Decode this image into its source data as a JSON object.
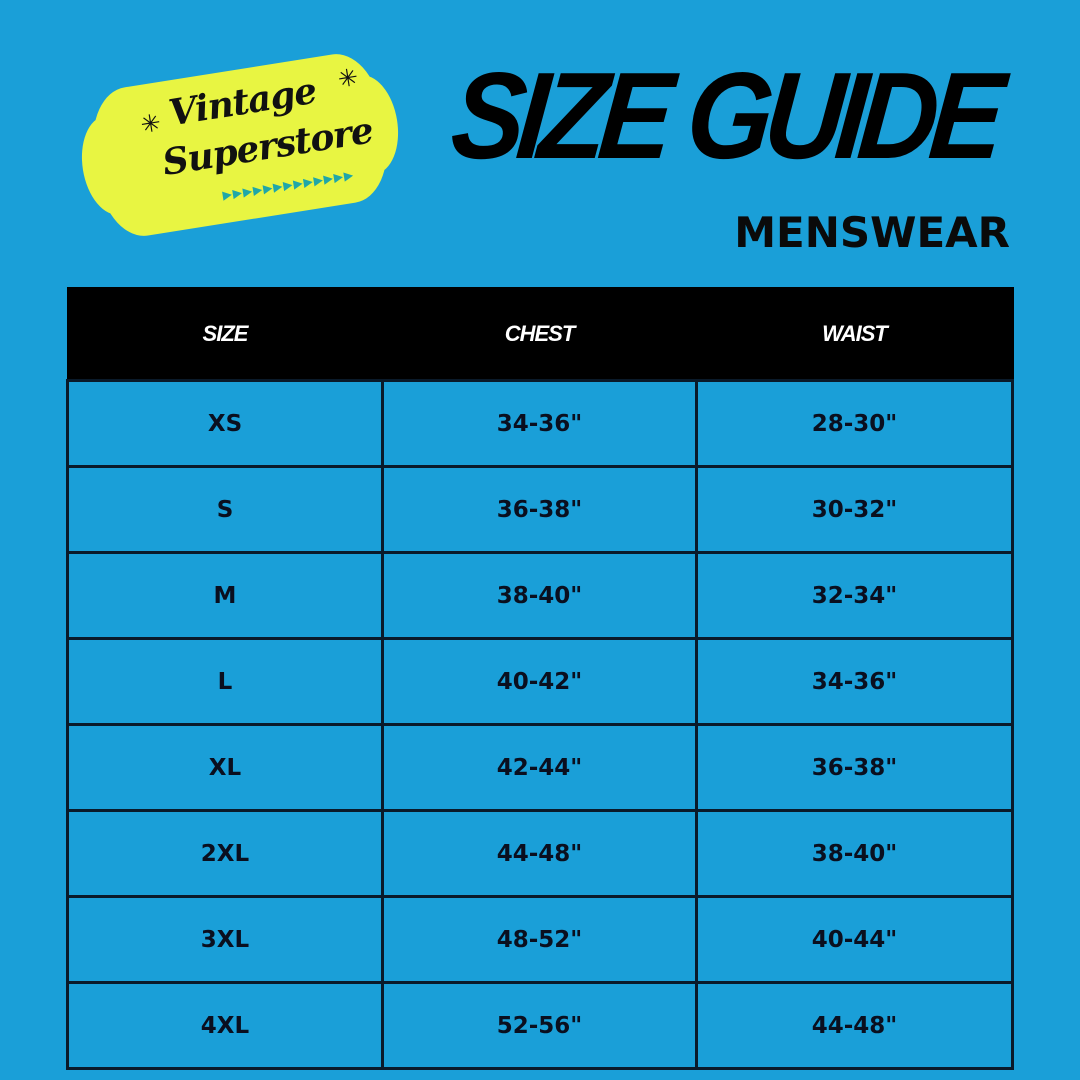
{
  "logo": {
    "line1": "Vintage",
    "line2": "Superstore",
    "colors": {
      "badge": "#e8f542",
      "accent": "#1fa7a8"
    }
  },
  "header": {
    "title": "SIZE GUIDE",
    "subtitle": "MENSWEAR"
  },
  "table": {
    "columns": [
      "SIZE",
      "CHEST",
      "WAIST"
    ],
    "rows": [
      [
        "XS",
        "34-36\"",
        "28-30\""
      ],
      [
        "S",
        "36-38\"",
        "30-32\""
      ],
      [
        "M",
        "38-40\"",
        "32-34\""
      ],
      [
        "L",
        "40-42\"",
        "34-36\""
      ],
      [
        "XL",
        "42-44\"",
        "36-38\""
      ],
      [
        "2XL",
        "44-48\"",
        "38-40\""
      ],
      [
        "3XL",
        "48-52\"",
        "40-44\""
      ],
      [
        "4XL",
        "52-56\"",
        "44-48\""
      ]
    ]
  },
  "colors": {
    "background": "#1a9fd8",
    "header_bg": "#000000"
  }
}
